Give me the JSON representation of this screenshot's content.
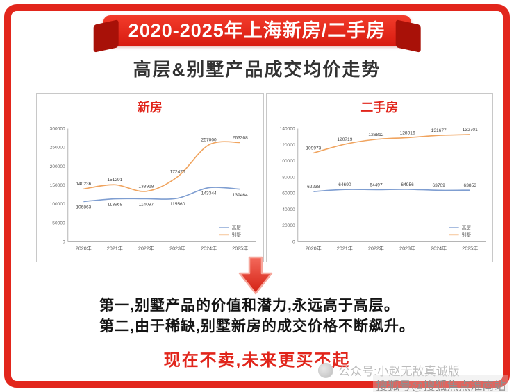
{
  "banner": {
    "title": "2020-2025年上海新房/二手房"
  },
  "page_title": "高层&别墅产品成交均价走势",
  "colors": {
    "frame_red": "#e2261c",
    "ribbon_red": "#d81b10",
    "accent_red": "#e1251b",
    "series_highrise_blue": "#7f9ed1",
    "series_villa_orange": "#f0a45f"
  },
  "chart_data": [
    {
      "type": "line",
      "title": "新房",
      "categories": [
        "2020年",
        "2021年",
        "2022年",
        "2023年",
        "2024年",
        "2025年"
      ],
      "series": [
        {
          "name": "高层",
          "color": "#7f9ed1",
          "label_side": "below",
          "values": [
            106863,
            113968,
            114097,
            115560,
            143344,
            139464
          ]
        },
        {
          "name": "别墅",
          "color": "#f0a45f",
          "label_side": "above",
          "values": [
            140236,
            151291,
            133918,
            172475,
            257000,
            263368
          ]
        }
      ],
      "ylim": [
        0,
        300000
      ],
      "ytick": 50000,
      "legend_position": "bottom-right",
      "grid": false
    },
    {
      "type": "line",
      "title": "二手房",
      "categories": [
        "2020年",
        "2021年",
        "2022年",
        "2023年",
        "2024年",
        "2025年"
      ],
      "series": [
        {
          "name": "高层",
          "color": "#7f9ed1",
          "label_side": "above",
          "values": [
            62238,
            64690,
            64497,
            64956,
            63709,
            63853
          ]
        },
        {
          "name": "别墅",
          "color": "#f0a45f",
          "label_side": "above",
          "values": [
            109973,
            120719,
            126812,
            128916,
            131677,
            132701
          ]
        }
      ],
      "ylim": [
        0,
        140000
      ],
      "ytick": 20000,
      "legend_position": "bottom-right",
      "grid": false
    }
  ],
  "conclusions": {
    "line1": "第一,别墅产品的价值和潜力,永远高于高层。",
    "line2": "第二,由于稀缺,别墅新房的成交价格不断飙升。",
    "highlight": "现在不卖,未来更买不起"
  },
  "watermarks": {
    "wechat": "公众号:小赵无敌真诚版",
    "sohu": "搜狐号@搜狐焦点淮南站"
  }
}
